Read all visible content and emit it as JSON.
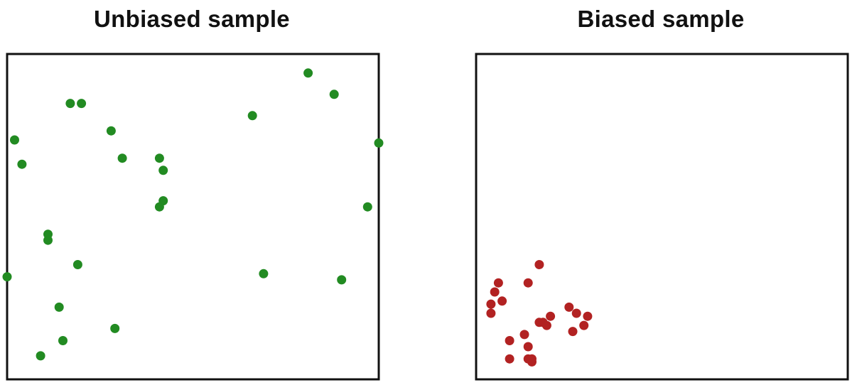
{
  "chart_data": [
    {
      "type": "scatter",
      "title": "Unbiased sample",
      "xlim": [
        0,
        100
      ],
      "ylim": [
        0,
        100
      ],
      "color": "#228b22",
      "x": [
        81,
        88,
        17,
        20,
        66,
        28,
        2,
        100,
        4,
        31,
        41,
        42,
        42,
        41,
        97,
        11,
        11,
        19,
        0,
        69,
        90,
        14,
        29,
        15,
        9
      ],
      "y": [
        97,
        90,
        87,
        87,
        83,
        78,
        75,
        74,
        67,
        69,
        69,
        65,
        55,
        53,
        53,
        44,
        42,
        34,
        30,
        31,
        29,
        20,
        13,
        9,
        4
      ]
    },
    {
      "type": "scatter",
      "title": "Biased sample",
      "xlim": [
        0,
        100
      ],
      "ylim": [
        0,
        100
      ],
      "color": "#b22222",
      "x": [
        17,
        6,
        14,
        5,
        4,
        7,
        4,
        25,
        20,
        18,
        19,
        17,
        27,
        30,
        29,
        26,
        13,
        9,
        14,
        15,
        9,
        14,
        15
      ],
      "y": [
        34,
        28,
        28,
        25,
        21,
        22,
        18,
        20,
        17,
        15,
        14,
        15,
        18,
        17,
        14,
        12,
        11,
        9,
        7,
        3,
        3,
        3,
        2
      ]
    }
  ]
}
